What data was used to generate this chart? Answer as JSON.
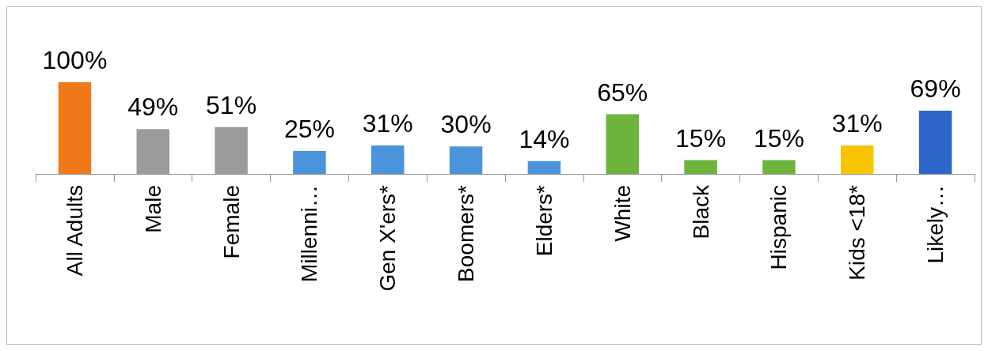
{
  "chart_data": {
    "type": "bar",
    "categories": [
      "All Adults",
      "Male",
      "Female",
      "Millenni…",
      "Gen X'ers*",
      "Boomers*",
      "Elders*",
      "White",
      "Black",
      "Hispanic",
      "Kids <18*",
      "Likely…"
    ],
    "values": [
      100,
      49,
      51,
      25,
      31,
      30,
      14,
      65,
      15,
      15,
      31,
      69
    ],
    "colors": [
      "#f07a1a",
      "#9b9b9b",
      "#9b9b9b",
      "#4a94dc",
      "#4a94dc",
      "#4a94dc",
      "#4a94dc",
      "#6cb43c",
      "#6cb43c",
      "#6cb43c",
      "#f8c400",
      "#2f66c8"
    ],
    "value_labels": [
      "100%",
      "49%",
      "51%",
      "25%",
      "31%",
      "30%",
      "14%",
      "65%",
      "15%",
      "15%",
      "31%",
      "69%"
    ],
    "color": "#000000"
  }
}
